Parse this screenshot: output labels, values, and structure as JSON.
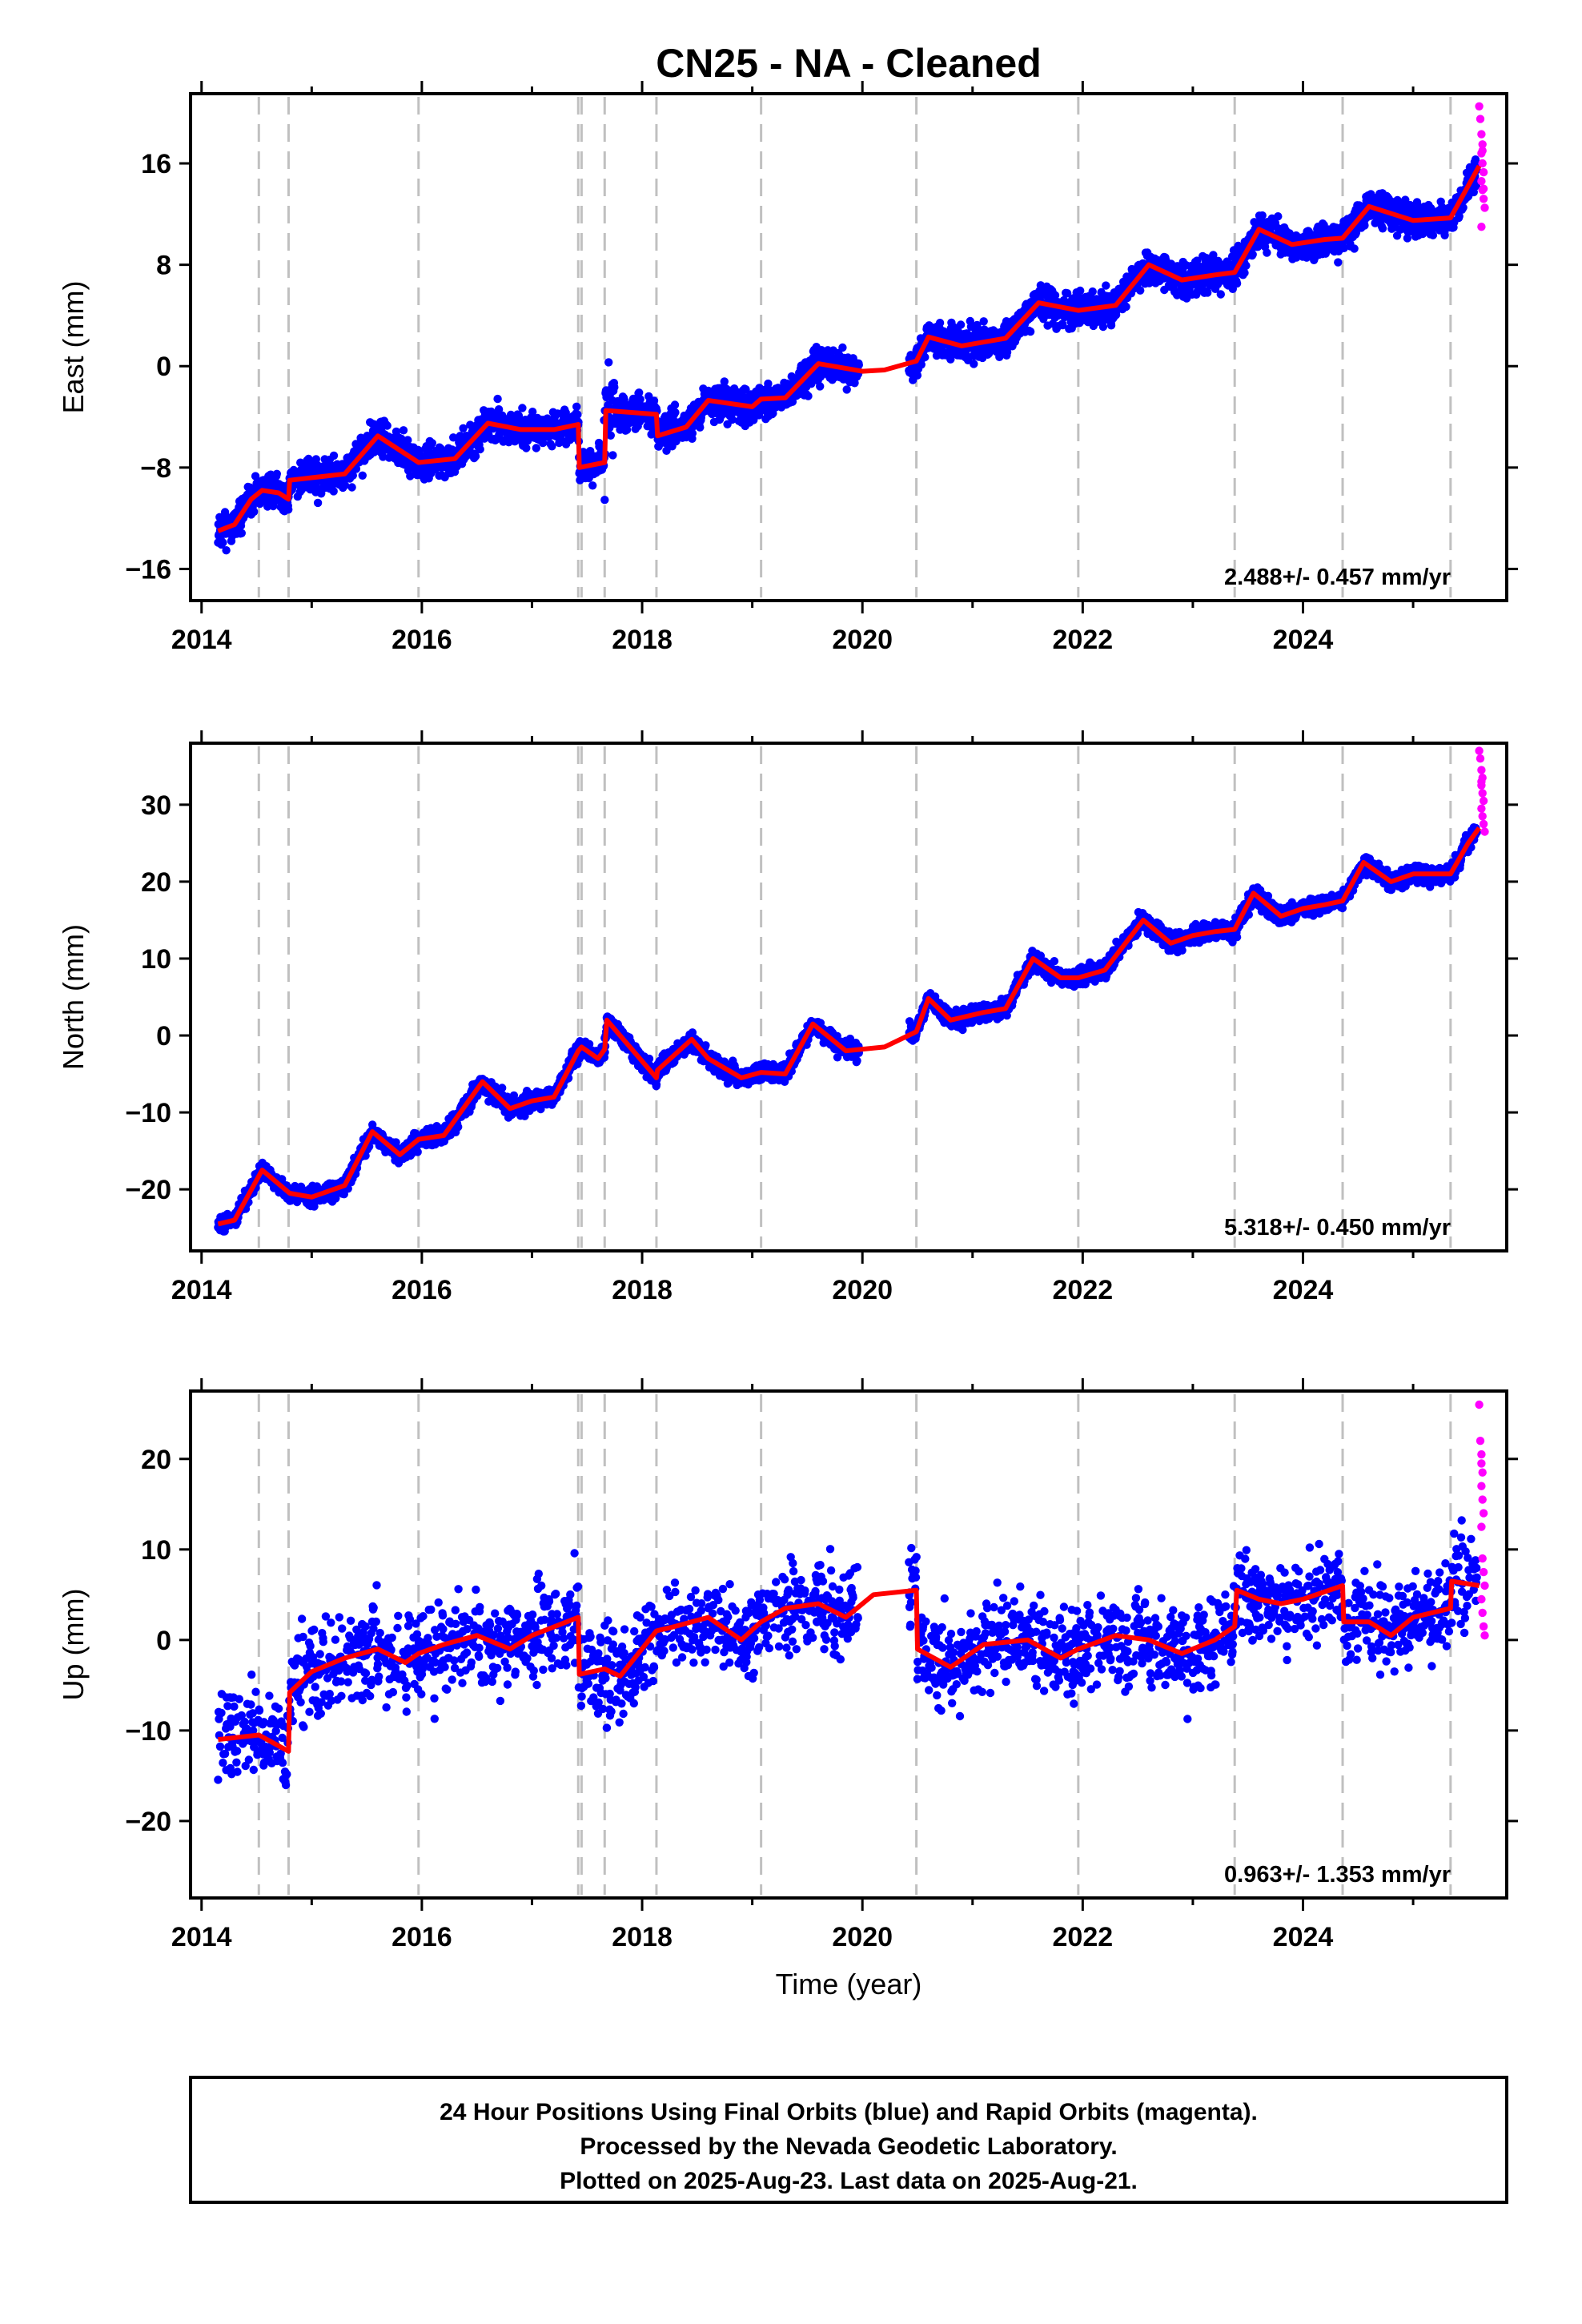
{
  "page": {
    "title": "CN25  - NA - Cleaned",
    "xlabel": "Time (year)",
    "footer": [
      "24 Hour Positions Using Final Orbits (blue) and Rapid Orbits (magenta).",
      "Processed by the Nevada Geodetic Laboratory.",
      "Plotted on 2025-Aug-23. Last data on 2025-Aug-21."
    ]
  },
  "colors": {
    "final_orbits": "#0000ff",
    "rapid_orbits": "#ff00ff",
    "model_fit": "#ff0000",
    "event_lines": "#c0c0c0",
    "frame": "#000000"
  },
  "chart_data": [
    {
      "type": "scatter",
      "component": "east",
      "ylabel": "East (mm)",
      "rate_text": "2.488+/- 0.457 mm/yr",
      "xlim": [
        2013.9,
        2025.85
      ],
      "ylim": [
        -18.5,
        21.5
      ],
      "xticks": [
        2014,
        2016,
        2018,
        2020,
        2022,
        2024
      ],
      "yticks": [
        -16,
        -8,
        0,
        8,
        16
      ],
      "event_lines_x": [
        2014.52,
        2014.79,
        2015.97,
        2017.42,
        2017.45,
        2017.66,
        2018.13,
        2019.08,
        2020.49,
        2021.96,
        2023.38,
        2024.36,
        2025.34
      ],
      "series": [
        {
          "kind": "model",
          "x": [
            2014.15,
            2014.3,
            2014.45,
            2014.55,
            2014.7,
            2014.79,
            2014.8,
            2015.0,
            2015.3,
            2015.6,
            2015.97,
            2016.3,
            2016.6,
            2016.9,
            2017.2,
            2017.42,
            2017.43,
            2017.66,
            2017.67,
            2018.13,
            2018.14,
            2018.4,
            2018.6,
            2019.0,
            2019.08,
            2019.3,
            2019.6,
            2020.0,
            2020.2,
            2020.49,
            2020.6,
            2020.9,
            2021.3,
            2021.6,
            2021.96,
            2022.3,
            2022.6,
            2022.9,
            2023.2,
            2023.38,
            2023.6,
            2023.9,
            2024.2,
            2024.36,
            2024.6,
            2025.0,
            2025.34,
            2025.6
          ],
          "y": [
            -13.0,
            -12.5,
            -10.5,
            -9.8,
            -10.0,
            -10.5,
            -9.0,
            -8.8,
            -8.5,
            -5.5,
            -7.6,
            -7.3,
            -4.5,
            -5.0,
            -5.0,
            -4.6,
            -8.0,
            -7.6,
            -3.5,
            -3.8,
            -5.5,
            -4.8,
            -2.7,
            -3.2,
            -2.6,
            -2.5,
            0.2,
            -0.4,
            -0.3,
            0.4,
            2.3,
            1.6,
            2.2,
            5.0,
            4.4,
            4.8,
            8.0,
            6.8,
            7.2,
            7.4,
            10.8,
            9.6,
            10.0,
            10.1,
            12.6,
            11.5,
            11.7,
            15.8
          ]
        },
        {
          "kind": "rapid",
          "x": [
            2025.6,
            2025.61,
            2025.62,
            2025.63,
            2025.62,
            2025.63,
            2025.64,
            2025.62,
            2025.63,
            2025.64,
            2025.65,
            2025.62,
            2025.63,
            2025.64
          ],
          "y": [
            20.5,
            19.5,
            18.3,
            17.5,
            16.8,
            16.0,
            15.3,
            14.6,
            13.9,
            13.2,
            12.5,
            11.0,
            17.0,
            14.0
          ]
        }
      ]
    },
    {
      "type": "scatter",
      "component": "north",
      "ylabel": "North (mm)",
      "rate_text": "5.318+/- 0.450 mm/yr",
      "xlim": [
        2013.9,
        2025.85
      ],
      "ylim": [
        -28,
        38
      ],
      "xticks": [
        2014,
        2016,
        2018,
        2020,
        2022,
        2024
      ],
      "yticks": [
        -20,
        -10,
        0,
        10,
        20,
        30
      ],
      "event_lines_x": [
        2014.52,
        2014.79,
        2015.97,
        2017.42,
        2017.45,
        2017.66,
        2018.13,
        2019.08,
        2020.49,
        2021.96,
        2023.38,
        2024.36,
        2025.34
      ],
      "series": [
        {
          "kind": "model",
          "x": [
            2014.15,
            2014.3,
            2014.55,
            2014.8,
            2015.0,
            2015.3,
            2015.55,
            2015.8,
            2015.97,
            2016.2,
            2016.55,
            2016.8,
            2017.0,
            2017.2,
            2017.42,
            2017.45,
            2017.6,
            2017.66,
            2017.68,
            2018.13,
            2018.14,
            2018.45,
            2018.6,
            2018.9,
            2019.08,
            2019.3,
            2019.55,
            2019.85,
            2020.2,
            2020.49,
            2020.6,
            2020.8,
            2021.1,
            2021.3,
            2021.55,
            2021.8,
            2021.96,
            2022.2,
            2022.55,
            2022.8,
            2023.0,
            2023.2,
            2023.38,
            2023.55,
            2023.8,
            2024.0,
            2024.2,
            2024.36,
            2024.55,
            2024.8,
            2025.0,
            2025.34,
            2025.5,
            2025.6
          ],
          "y": [
            -24.5,
            -24.0,
            -17.5,
            -20.5,
            -21.0,
            -19.5,
            -12.5,
            -15.5,
            -13.5,
            -13.0,
            -6.0,
            -9.5,
            -8.5,
            -8.0,
            -2.0,
            -1.5,
            -3.0,
            -1.8,
            2.0,
            -5.5,
            -4.5,
            -0.5,
            -3.0,
            -5.5,
            -4.8,
            -5.0,
            1.5,
            -2.0,
            -1.5,
            0.5,
            4.8,
            2.0,
            3.0,
            3.5,
            10.0,
            7.5,
            7.5,
            8.5,
            15.0,
            12.0,
            13.0,
            13.5,
            13.8,
            18.5,
            15.5,
            16.5,
            17.0,
            17.5,
            22.5,
            20.0,
            21.0,
            21.0,
            25.0,
            27.0
          ]
        },
        {
          "kind": "rapid",
          "x": [
            2025.6,
            2025.61,
            2025.62,
            2025.63,
            2025.62,
            2025.63,
            2025.64,
            2025.62,
            2025.63,
            2025.64,
            2025.65,
            2025.62
          ],
          "y": [
            37.0,
            36.0,
            34.5,
            33.5,
            32.5,
            31.5,
            30.5,
            29.5,
            28.5,
            27.5,
            26.5,
            33.0
          ]
        }
      ]
    },
    {
      "type": "scatter",
      "component": "up",
      "ylabel": "Up (mm)",
      "rate_text": "0.963+/- 1.353 mm/yr",
      "xlim": [
        2013.9,
        2025.85
      ],
      "ylim": [
        -28.5,
        27.5
      ],
      "xticks": [
        2014,
        2016,
        2018,
        2020,
        2022,
        2024
      ],
      "yticks": [
        -20,
        -10,
        0,
        10,
        20
      ],
      "event_lines_x": [
        2014.52,
        2014.79,
        2015.97,
        2017.42,
        2017.45,
        2017.66,
        2018.13,
        2019.08,
        2020.49,
        2021.96,
        2023.38,
        2024.36,
        2025.34
      ],
      "series": [
        {
          "kind": "model",
          "x": [
            2014.15,
            2014.52,
            2014.79,
            2014.8,
            2015.0,
            2015.3,
            2015.6,
            2015.85,
            2015.97,
            2016.2,
            2016.5,
            2016.8,
            2017.0,
            2017.42,
            2017.43,
            2017.66,
            2017.8,
            2018.13,
            2018.3,
            2018.6,
            2018.9,
            2019.08,
            2019.3,
            2019.6,
            2019.85,
            2020.1,
            2020.49,
            2020.5,
            2020.8,
            2021.1,
            2021.5,
            2021.8,
            2021.96,
            2022.3,
            2022.6,
            2022.9,
            2023.2,
            2023.38,
            2023.4,
            2023.6,
            2023.8,
            2024.0,
            2024.36,
            2024.37,
            2024.6,
            2024.8,
            2025.0,
            2025.34,
            2025.35,
            2025.6
          ],
          "y": [
            -11.0,
            -10.5,
            -12.3,
            -5.8,
            -3.5,
            -2.0,
            -1.0,
            -2.5,
            -1.5,
            -0.5,
            0.5,
            -1.0,
            0.5,
            2.5,
            -3.8,
            -3.2,
            -4.0,
            1.0,
            1.5,
            2.5,
            0.0,
            2.0,
            3.5,
            4.0,
            2.5,
            5.0,
            5.5,
            -1.0,
            -3.0,
            -0.5,
            0.0,
            -2.0,
            -1.0,
            0.5,
            0.0,
            -1.5,
            0.0,
            1.5,
            5.5,
            4.5,
            4.0,
            4.5,
            6.0,
            2.0,
            2.0,
            0.5,
            2.5,
            3.5,
            6.5,
            6.0
          ]
        },
        {
          "kind": "rapid",
          "x": [
            2025.6,
            2025.61,
            2025.62,
            2025.63,
            2025.62,
            2025.63,
            2025.64,
            2025.62,
            2025.63,
            2025.64,
            2025.65,
            2025.62,
            2025.63,
            2025.64,
            2025.65,
            2025.62
          ],
          "y": [
            26.0,
            22.0,
            20.5,
            18.5,
            17.0,
            15.5,
            14.0,
            12.5,
            9.0,
            7.5,
            6.0,
            4.5,
            3.0,
            1.5,
            0.5,
            19.5
          ]
        }
      ]
    }
  ]
}
